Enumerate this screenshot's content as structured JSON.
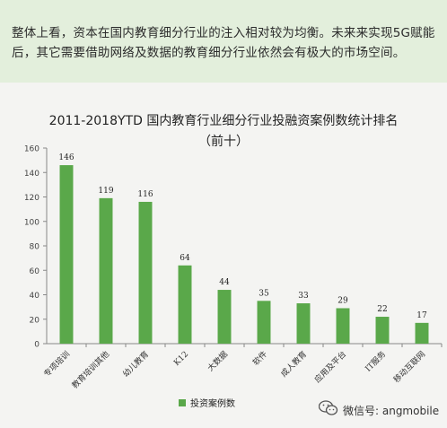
{
  "banner": {
    "text": "整体上看，资本在国内教育细分行业的注入相对较为均衡。未来来实现5G赋能后，其它需要借助网络及数据的教育细分行业依然会有极大的市场空间。"
  },
  "chart_data": {
    "type": "bar",
    "title": "2011-2018YTD 国内教育行业细分行业投融资案例数统计排名",
    "subtitle": "（前十）",
    "categories": [
      "专项培训",
      "教育培训其他",
      "幼儿教育",
      "K12",
      "大数据",
      "软件",
      "成人教育",
      "应用及平台",
      "IT服务",
      "移动互联网"
    ],
    "series": [
      {
        "name": "投资案例数",
        "values": [
          146,
          119,
          116,
          64,
          44,
          35,
          33,
          29,
          22,
          17
        ]
      }
    ],
    "ylim": [
      0,
      160
    ],
    "yticks": [
      0,
      20,
      40,
      60,
      80,
      100,
      120,
      140,
      160
    ],
    "grid": false,
    "legend": "bottom",
    "bar_color": "#5aa84a"
  },
  "watermark": {
    "text": "微信号: angmobile",
    "icon": "wechat-icon"
  }
}
